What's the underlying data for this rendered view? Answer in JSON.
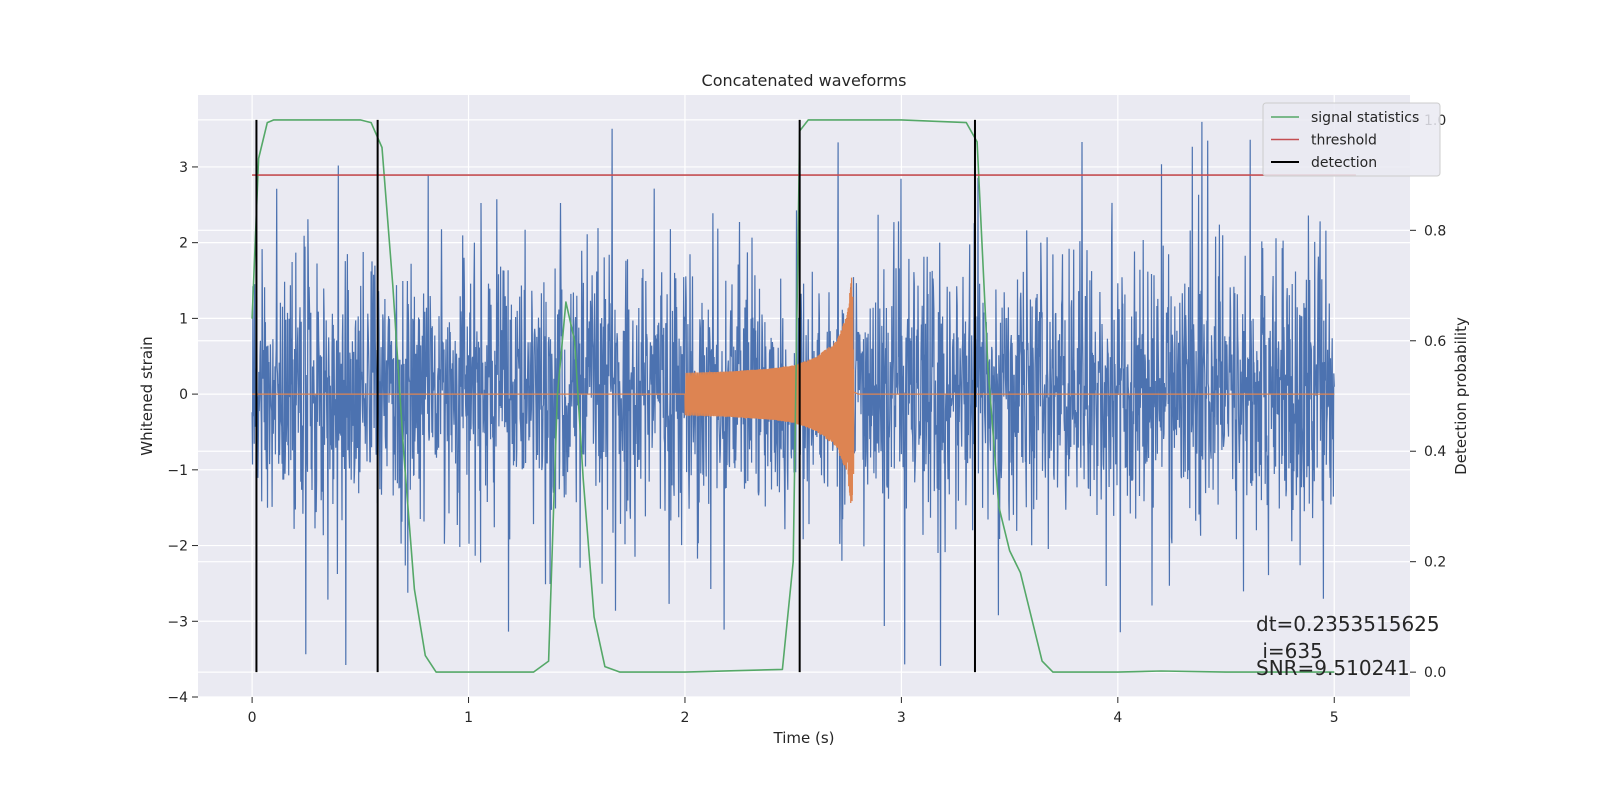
{
  "chart_data": {
    "type": "line",
    "title": "Concatenated waveforms",
    "xlabel": "Time (s)",
    "ylabel": "Whitened strain",
    "y2label": "Detection probability",
    "xlim": [
      -0.25,
      5.35
    ],
    "ylim": [
      -4.0,
      3.95
    ],
    "y2lim": [
      -0.045,
      1.045
    ],
    "xticks": [
      0,
      1,
      2,
      3,
      4,
      5
    ],
    "yticks": [
      3,
      2,
      1,
      0,
      -1,
      -2,
      -3,
      -4
    ],
    "y2ticks": [
      1.0,
      0.8,
      0.6,
      0.4,
      0.2,
      0.0
    ],
    "ytick_labels": [
      "3",
      "2",
      "1",
      "0",
      "−1",
      "−2",
      "−3",
      "−4"
    ],
    "y2tick_labels": [
      "1.0",
      "0.8",
      "0.6",
      "0.4",
      "0.2",
      "0.0"
    ],
    "xtick_labels": [
      "0",
      "1",
      "2",
      "3",
      "4",
      "5"
    ],
    "grid": true,
    "legend_position": "top-right",
    "colors": {
      "noise": "#4c72b0",
      "waveform": "#dd8452",
      "signal_statistics": "#55a868",
      "threshold": "#c44e52",
      "detection": "#000000",
      "plot_bg": "#eaeaf2",
      "grid": "#ffffff"
    },
    "series": [
      {
        "name": "whitened strain (noise)",
        "axis": "left",
        "x_range": [
          0,
          5
        ],
        "envelope_typical": [
          -0.75,
          0.9
        ],
        "peak_max": 3.6,
        "peak_min": -3.65
      },
      {
        "name": "waveform (chirp)",
        "axis": "left",
        "x": [
          2.0,
          2.2,
          2.4,
          2.5,
          2.6,
          2.7,
          2.75,
          2.77,
          2.8
        ],
        "amplitude": [
          0.28,
          0.3,
          0.34,
          0.38,
          0.48,
          0.7,
          1.05,
          1.55,
          0.0
        ]
      },
      {
        "name": "signal statistics",
        "axis": "right",
        "x": [
          0.0,
          0.03,
          0.07,
          0.1,
          0.3,
          0.5,
          0.55,
          0.6,
          0.65,
          0.7,
          0.75,
          0.8,
          0.85,
          1.3,
          1.37,
          1.41,
          1.45,
          1.49,
          1.53,
          1.58,
          1.63,
          1.7,
          2.0,
          2.45,
          2.5,
          2.53,
          2.57,
          2.6,
          3.0,
          3.3,
          3.35,
          3.4,
          3.45,
          3.5,
          3.55,
          3.6,
          3.65,
          3.7,
          4.0,
          4.2,
          4.5,
          5.0
        ],
        "values": [
          0.64,
          0.93,
          0.995,
          1.0,
          1.0,
          1.0,
          0.995,
          0.95,
          0.7,
          0.4,
          0.15,
          0.03,
          0.0,
          0.0,
          0.02,
          0.5,
          0.67,
          0.6,
          0.35,
          0.1,
          0.01,
          0.0,
          0.0,
          0.005,
          0.2,
          0.98,
          1.0,
          1.0,
          1.0,
          0.995,
          0.96,
          0.55,
          0.3,
          0.22,
          0.18,
          0.1,
          0.02,
          0.0,
          0.0,
          0.002,
          0.0,
          0.0
        ]
      },
      {
        "name": "threshold",
        "axis": "right",
        "x": [
          0.0,
          5.1
        ],
        "values": [
          0.9,
          0.9
        ]
      },
      {
        "name": "detection",
        "axis": "right",
        "vlines_x": [
          0.02,
          0.58,
          2.53,
          3.34
        ],
        "range": [
          0.0,
          1.0
        ]
      }
    ],
    "legend": [
      "signal statistics",
      "threshold",
      "detection"
    ],
    "annotations": [
      {
        "text": "dt=0.2353515625"
      },
      {
        "text": " i=635"
      },
      {
        "text": "SNR=9.510241"
      }
    ]
  }
}
